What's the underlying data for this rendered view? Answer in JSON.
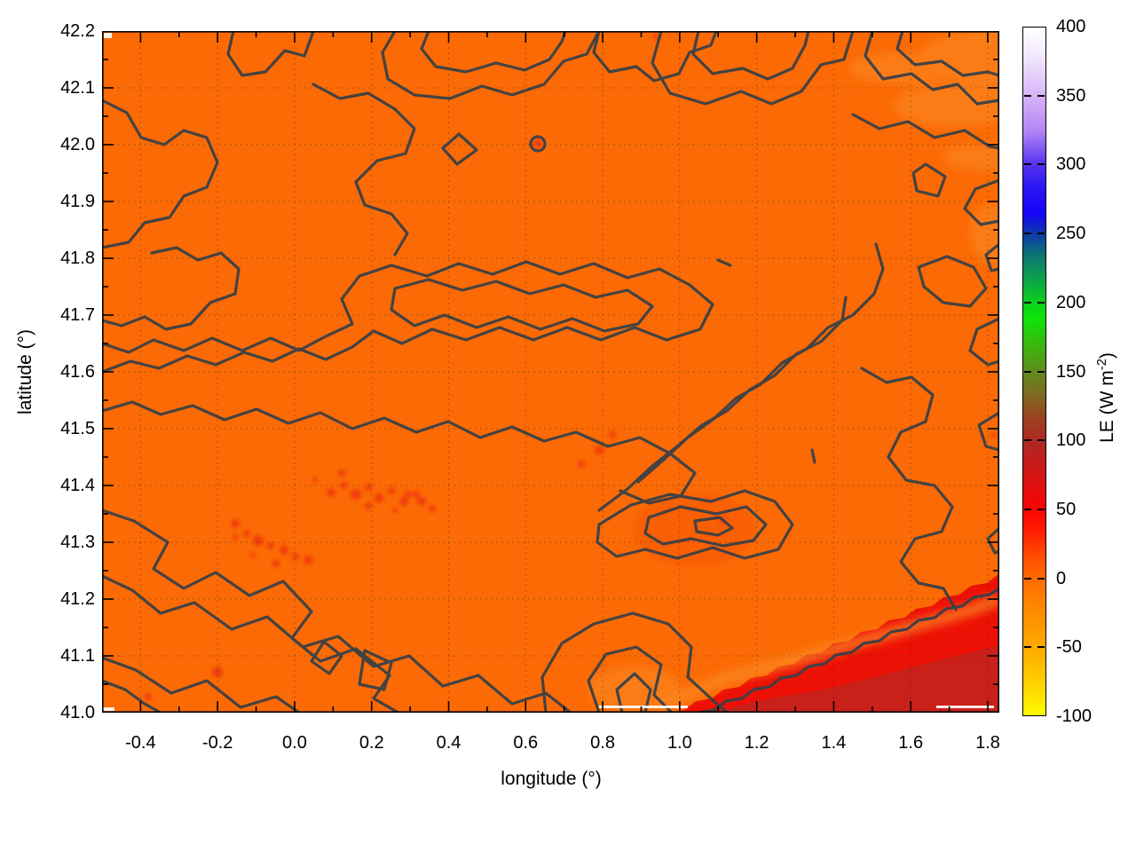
{
  "figure": {
    "background": "#ffffff",
    "x_axis": {
      "label": "longitude (°)",
      "tick_labels": [
        "-0.4",
        "-0.2",
        "0.0",
        "0.2",
        "0.4",
        "0.6",
        "0.8",
        "1.0",
        "1.2",
        "1.4",
        "1.6",
        "1.8"
      ],
      "tick_values": [
        -0.4,
        -0.2,
        0.0,
        0.2,
        0.4,
        0.6,
        0.8,
        1.0,
        1.2,
        1.4,
        1.6,
        1.8
      ],
      "minor_step": 0.1,
      "range": [
        -0.5,
        1.83
      ]
    },
    "y_axis": {
      "label": "latitude (°)",
      "tick_labels": [
        "41.0",
        "41.1",
        "41.2",
        "41.3",
        "41.4",
        "41.5",
        "41.6",
        "41.7",
        "41.8",
        "41.9",
        "42.0",
        "42.1",
        "42.2"
      ],
      "tick_values": [
        41.0,
        41.1,
        41.2,
        41.3,
        41.4,
        41.5,
        41.6,
        41.7,
        41.8,
        41.9,
        42.0,
        42.1,
        42.2
      ],
      "minor_step": 0.05,
      "range": [
        41.0,
        42.2
      ]
    },
    "colorbar": {
      "label_prefix": "LE (W m",
      "label_sup": "-2",
      "label_suffix": ")",
      "tick_labels": [
        "400",
        "350",
        "300",
        "250",
        "200",
        "150",
        "100",
        "50",
        "0",
        "-50",
        "-100"
      ],
      "tick_values": [
        400,
        350,
        300,
        250,
        200,
        150,
        100,
        50,
        0,
        -50,
        -100
      ],
      "range": [
        -100,
        400
      ]
    }
  },
  "colors": {
    "axis": "#000000",
    "grid": "rgba(40,40,40,0.5)",
    "land": "#fb6a04",
    "sea": "#ed1005",
    "sea_dark": "#c9201a",
    "coastal_light": "#fb8b28",
    "spots": "#f23a0c",
    "contour": "#3b4046",
    "artifact_white": "#ffffff"
  },
  "chart_data": {
    "type": "heatmap",
    "variable": "LE",
    "units": "W m-2",
    "title": "",
    "xlabel": "longitude (°)",
    "ylabel": "latitude (°)",
    "colorbar_label": "LE (W m-2)",
    "xlim": [
      -0.5,
      1.83
    ],
    "ylim": [
      41.0,
      42.2
    ],
    "clim": [
      -100,
      400
    ],
    "x_ticks": [
      -0.4,
      -0.2,
      0.0,
      0.2,
      0.4,
      0.6,
      0.8,
      1.0,
      1.2,
      1.4,
      1.6,
      1.8
    ],
    "y_ticks": [
      41.0,
      41.1,
      41.2,
      41.3,
      41.4,
      41.5,
      41.6,
      41.7,
      41.8,
      41.9,
      42.0,
      42.1,
      42.2
    ],
    "colorbar_ticks": [
      -100,
      -50,
      0,
      50,
      100,
      150,
      200,
      250,
      300,
      350,
      400
    ],
    "grid": "dotted lines at major ticks, mirrored inward ticks on all four axes",
    "legend_position": "vertical colorbar at right",
    "palette_stops": [
      {
        "value": 400,
        "color": "#ffffff"
      },
      {
        "value": 380,
        "color": "#f2eafd"
      },
      {
        "value": 350,
        "color": "#d7b3f8"
      },
      {
        "value": 325,
        "color": "#b286f5"
      },
      {
        "value": 300,
        "color": "#5531f1"
      },
      {
        "value": 285,
        "color": "#2c18f1"
      },
      {
        "value": 265,
        "color": "#1503f8"
      },
      {
        "value": 250,
        "color": "#0d3ba8"
      },
      {
        "value": 235,
        "color": "#0d7276"
      },
      {
        "value": 218,
        "color": "#0ba04c"
      },
      {
        "value": 200,
        "color": "#0bd01b"
      },
      {
        "value": 188,
        "color": "#0ce40a"
      },
      {
        "value": 170,
        "color": "#39b90d"
      },
      {
        "value": 150,
        "color": "#5f8c1c"
      },
      {
        "value": 133,
        "color": "#7d6a20"
      },
      {
        "value": 115,
        "color": "#9d3f22"
      },
      {
        "value": 100,
        "color": "#ac2a22"
      },
      {
        "value": 85,
        "color": "#c41d1c"
      },
      {
        "value": 65,
        "color": "#e30d0d"
      },
      {
        "value": 50,
        "color": "#f70404"
      },
      {
        "value": 35,
        "color": "#ff1b00"
      },
      {
        "value": 15,
        "color": "#ff4d00"
      },
      {
        "value": 0,
        "color": "#ff6a00"
      },
      {
        "value": -20,
        "color": "#ff8600"
      },
      {
        "value": -50,
        "color": "#ffa900"
      },
      {
        "value": -75,
        "color": "#ffcd00"
      },
      {
        "value": -100,
        "color": "#fffb00"
      }
    ],
    "features": [
      {
        "name": "land",
        "description": "dominant land surface covering most of the map",
        "approx_value": 0,
        "color": "#fb6a04"
      },
      {
        "name": "sea",
        "description": "sea area in bottom-right corner with stepped coastline from (1.2°,41.0°) to (1.83°,41.25°)",
        "approx_value": 50,
        "color": "#ed1005"
      },
      {
        "name": "sea-dark-band",
        "description": "darker red band along the outer bottom-right corner of the sea",
        "approx_value": 90,
        "color": "#c9201a"
      },
      {
        "name": "coastal-light-strip",
        "description": "lighter orange strip hugging the coastline",
        "approx_value": -20,
        "color": "#fb8b28"
      },
      {
        "name": "moist-spots",
        "description": "scattered fuzzy red patches around lon 0.0–0.55, lat 41.25–41.4 and a few isolated dots",
        "approx_value": 35,
        "color": "#f23a0c"
      },
      {
        "name": "contours",
        "description": "dark gray squiggly contour lines over the whole land area",
        "color": "#3b4046"
      }
    ]
  }
}
